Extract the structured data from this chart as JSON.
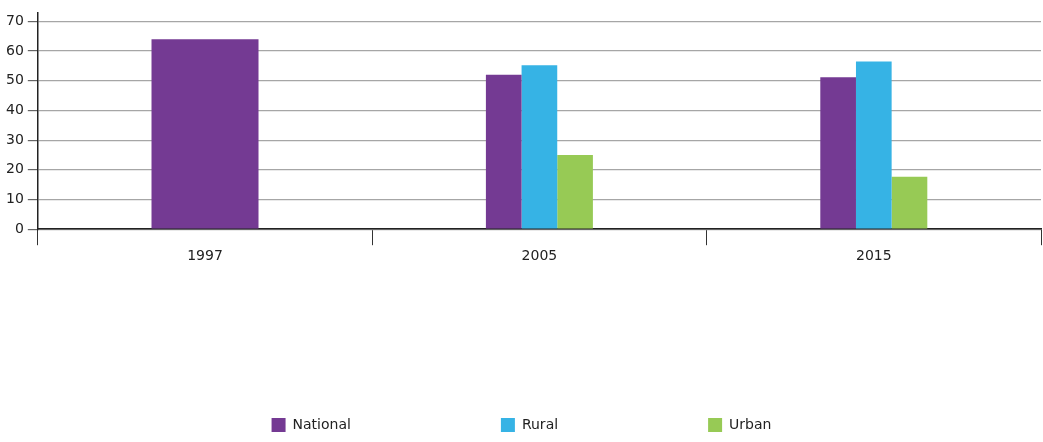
{
  "chart_data": {
    "type": "bar",
    "categories": [
      "1997",
      "2005",
      "2015"
    ],
    "series": [
      {
        "name": "National",
        "color": "#743a93",
        "values": [
          64,
          52,
          51.2
        ]
      },
      {
        "name": "Rural",
        "color": "#36b3e5",
        "values": [
          null,
          55.2,
          56.5
        ]
      },
      {
        "name": "Urban",
        "color": "#97ca55",
        "values": [
          null,
          25,
          17.7
        ]
      }
    ],
    "ylim": [
      0,
      73
    ],
    "yticks": [
      0,
      10,
      20,
      30,
      40,
      50,
      60,
      70
    ],
    "grid": "y",
    "legend": "bottom"
  }
}
